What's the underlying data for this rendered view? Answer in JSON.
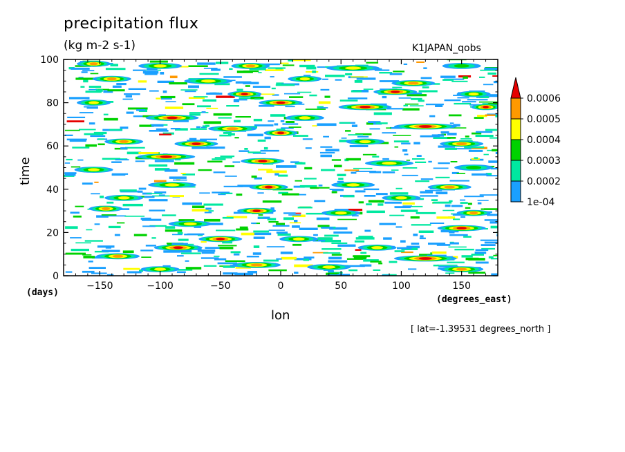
{
  "chart_data": {
    "type": "heatmap",
    "title": "precipitation flux",
    "subtitle": "(kg m-2 s-1)",
    "dataset": "K1JAPAN_qobs",
    "xlabel": "lon",
    "ylabel": "time",
    "xunit": "(degrees_east)",
    "yunit": "(days)",
    "slice_note": "[ lat=-1.39531 degrees_north ]",
    "xlim": [
      -180,
      180
    ],
    "ylim": [
      0,
      100
    ],
    "xticks": [
      -150,
      -100,
      -50,
      0,
      50,
      100,
      150
    ],
    "yticks": [
      0,
      20,
      40,
      60,
      80,
      100
    ],
    "xtick_labels": [
      "−150",
      "−100",
      "−50",
      "0",
      "50",
      "100",
      "150"
    ],
    "ytick_labels": [
      "0",
      "20",
      "40",
      "60",
      "80",
      "100"
    ],
    "grid": false,
    "legend": "right",
    "colorbar": {
      "levels": [
        0.0001,
        0.0002,
        0.0003,
        0.0004,
        0.0005,
        0.0006
      ],
      "labels": [
        "1e-04",
        "0.0002",
        "0.0003",
        "0.0004",
        "0.0005",
        "0.0006"
      ],
      "colors": [
        "#1aa0ff",
        "#00e8a0",
        "#00d200",
        "#ffff00",
        "#ff9900",
        "#e60000"
      ],
      "extend": "max"
    },
    "features": [
      {
        "lon": -155,
        "t": 98,
        "w": 14,
        "lvl": 4
      },
      {
        "lon": -100,
        "t": 97,
        "w": 18,
        "lvl": 3
      },
      {
        "lon": -25,
        "t": 97,
        "w": 16,
        "lvl": 4
      },
      {
        "lon": 60,
        "t": 96,
        "w": 22,
        "lvl": 3
      },
      {
        "lon": 150,
        "t": 97,
        "w": 16,
        "lvl": 2
      },
      {
        "lon": -140,
        "t": 91,
        "w": 16,
        "lvl": 4
      },
      {
        "lon": -60,
        "t": 90,
        "w": 20,
        "lvl": 3
      },
      {
        "lon": 20,
        "t": 91,
        "w": 14,
        "lvl": 3
      },
      {
        "lon": 110,
        "t": 89,
        "w": 18,
        "lvl": 4
      },
      {
        "lon": -30,
        "t": 84,
        "w": 14,
        "lvl": 5
      },
      {
        "lon": 95,
        "t": 85,
        "w": 18,
        "lvl": 5
      },
      {
        "lon": 160,
        "t": 84,
        "w": 14,
        "lvl": 3
      },
      {
        "lon": -155,
        "t": 80,
        "w": 14,
        "lvl": 3
      },
      {
        "lon": 0,
        "t": 80,
        "w": 18,
        "lvl": 5
      },
      {
        "lon": 70,
        "t": 78,
        "w": 22,
        "lvl": 5
      },
      {
        "lon": 170,
        "t": 78,
        "w": 12,
        "lvl": 5
      },
      {
        "lon": -90,
        "t": 73,
        "w": 22,
        "lvl": 5
      },
      {
        "lon": 20,
        "t": 73,
        "w": 16,
        "lvl": 3
      },
      {
        "lon": 120,
        "t": 69,
        "w": 26,
        "lvl": 5
      },
      {
        "lon": -40,
        "t": 68,
        "w": 20,
        "lvl": 4
      },
      {
        "lon": 0,
        "t": 66,
        "w": 14,
        "lvl": 5
      },
      {
        "lon": -130,
        "t": 62,
        "w": 16,
        "lvl": 4
      },
      {
        "lon": -70,
        "t": 61,
        "w": 18,
        "lvl": 5
      },
      {
        "lon": 70,
        "t": 62,
        "w": 16,
        "lvl": 3
      },
      {
        "lon": 150,
        "t": 61,
        "w": 18,
        "lvl": 4
      },
      {
        "lon": -95,
        "t": 55,
        "w": 24,
        "lvl": 5
      },
      {
        "lon": -15,
        "t": 53,
        "w": 18,
        "lvl": 5
      },
      {
        "lon": 90,
        "t": 52,
        "w": 20,
        "lvl": 3
      },
      {
        "lon": -155,
        "t": 49,
        "w": 16,
        "lvl": 3
      },
      {
        "lon": 160,
        "t": 50,
        "w": 16,
        "lvl": 2
      },
      {
        "lon": -90,
        "t": 42,
        "w": 20,
        "lvl": 3
      },
      {
        "lon": -10,
        "t": 41,
        "w": 16,
        "lvl": 5
      },
      {
        "lon": 60,
        "t": 42,
        "w": 18,
        "lvl": 3
      },
      {
        "lon": 140,
        "t": 41,
        "w": 18,
        "lvl": 4
      },
      {
        "lon": -130,
        "t": 36,
        "w": 16,
        "lvl": 3
      },
      {
        "lon": 100,
        "t": 36,
        "w": 16,
        "lvl": 3
      },
      {
        "lon": -145,
        "t": 31,
        "w": 14,
        "lvl": 4
      },
      {
        "lon": -20,
        "t": 30,
        "w": 16,
        "lvl": 5
      },
      {
        "lon": 50,
        "t": 29,
        "w": 16,
        "lvl": 3
      },
      {
        "lon": 160,
        "t": 29,
        "w": 14,
        "lvl": 4
      },
      {
        "lon": -75,
        "t": 24,
        "w": 18,
        "lvl": 3
      },
      {
        "lon": 150,
        "t": 22,
        "w": 20,
        "lvl": 5
      },
      {
        "lon": -50,
        "t": 17,
        "w": 18,
        "lvl": 5
      },
      {
        "lon": 15,
        "t": 17,
        "w": 16,
        "lvl": 3
      },
      {
        "lon": -85,
        "t": 13,
        "w": 20,
        "lvl": 5
      },
      {
        "lon": 80,
        "t": 13,
        "w": 16,
        "lvl": 3
      },
      {
        "lon": -135,
        "t": 9,
        "w": 18,
        "lvl": 4
      },
      {
        "lon": 120,
        "t": 8,
        "w": 26,
        "lvl": 5
      },
      {
        "lon": -20,
        "t": 5,
        "w": 20,
        "lvl": 4
      },
      {
        "lon": 40,
        "t": 4,
        "w": 18,
        "lvl": 3
      },
      {
        "lon": -100,
        "t": 3,
        "w": 16,
        "lvl": 3
      },
      {
        "lon": 150,
        "t": 3,
        "w": 18,
        "lvl": 4
      }
    ]
  }
}
